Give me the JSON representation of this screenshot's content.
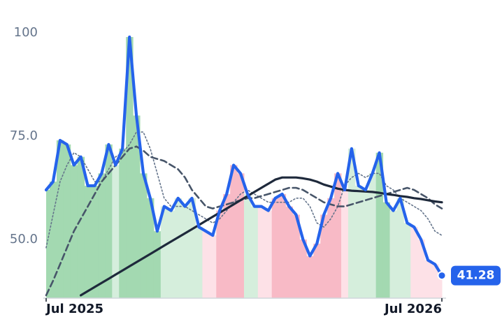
{
  "chart_data": {
    "type": "line",
    "x": [
      0,
      1,
      2,
      3,
      4,
      5,
      6,
      7,
      8,
      9,
      10,
      11,
      12,
      13,
      14,
      15,
      16,
      17,
      18,
      19,
      20,
      21,
      22,
      23,
      24,
      25,
      26,
      27,
      28,
      29,
      30,
      31,
      32,
      33,
      34,
      35,
      36,
      37,
      38,
      39,
      40,
      41,
      42,
      43,
      44,
      45,
      46,
      47,
      48,
      49,
      50,
      51,
      52,
      53,
      54,
      55,
      56,
      57
    ],
    "xlim": [
      0,
      57
    ],
    "xticks": [
      {
        "value": 0,
        "label": "Jul 2025"
      },
      {
        "value": 57,
        "label": "Jul 2026"
      }
    ],
    "ylim": [
      35.8,
      101.2
    ],
    "yticks": [
      {
        "value": 50,
        "label": "50.0"
      },
      {
        "value": 75,
        "label": "75.0"
      },
      100
    ],
    "grid": false,
    "series": [
      {
        "color": "#2563eb",
        "style": "solid-thick",
        "values": [
          62,
          64,
          74,
          73,
          68,
          70,
          63,
          63,
          66,
          73,
          68,
          72,
          99,
          80,
          66,
          60,
          52,
          58,
          57,
          60,
          58,
          60,
          53,
          52,
          51,
          57,
          61,
          68,
          66,
          61,
          58,
          58,
          57,
          60,
          61,
          58,
          56,
          50,
          46,
          49,
          56,
          60,
          66,
          62,
          72,
          63,
          62,
          66,
          71,
          59,
          57,
          60,
          54,
          53,
          50,
          45,
          44,
          41.28
        ],
        "fill_colors": [
          "#a3d9b1",
          "#a3d9b1",
          "#a3d9b1",
          "#a3d9b1",
          "#a3d9b1",
          "#a3d9b1",
          "#a3d9b1",
          "#a3d9b1",
          "#a3d9b1",
          "#a3d9b1",
          "#d5eedc",
          "#a3d9b1",
          "#a3d9b1",
          "#a3d9b1",
          "#a3d9b1",
          "#a3d9b1",
          "#a3d9b1",
          "#d5eedc",
          "#d5eedc",
          "#d5eedc",
          "#d5eedc",
          "#d5eedc",
          "#d5eedc",
          "#fde1e7",
          "#fde1e7",
          "#f8bac6",
          "#f8bac6",
          "#f8bac6",
          "#f8bac6",
          "#d5eedc",
          "#d5eedc",
          "#fde1e7",
          "#fde1e7",
          "#f8bac6",
          "#f8bac6",
          "#f8bac6",
          "#f8bac6",
          "#f8bac6",
          "#f8bac6",
          "#f8bac6",
          "#f8bac6",
          "#f8bac6",
          "#f8bac6",
          "#fde1e7",
          "#d5eedc",
          "#d5eedc",
          "#d5eedc",
          "#d5eedc",
          "#a3d9b1",
          "#a3d9b1",
          "#d5eedc",
          "#d5eedc",
          "#d5eedc",
          "#fde1e7",
          "#fde1e7",
          "#fde1e7",
          "#fde1e7",
          "#fde1e7"
        ]
      },
      {
        "color": "#64748b",
        "style": "dotted",
        "values": [
          48,
          56,
          64,
          68,
          71,
          70,
          67,
          64,
          64,
          67,
          70,
          71,
          73,
          76,
          76,
          72,
          66,
          60,
          58,
          58,
          58,
          57,
          56,
          55,
          54,
          55,
          57,
          59,
          61,
          62,
          61,
          60,
          59,
          59,
          59,
          59,
          60,
          60,
          58,
          54,
          53,
          55,
          58,
          63,
          65,
          66,
          65,
          66,
          66,
          63,
          62,
          60,
          59,
          58,
          57,
          55,
          52,
          51
        ]
      },
      {
        "color": "#475569",
        "style": "dashed",
        "values": [
          36.5,
          40,
          44,
          48,
          52,
          55,
          58,
          61,
          64,
          66,
          68,
          70,
          72,
          72.5,
          71.5,
          70,
          69.5,
          69,
          68,
          67,
          65,
          62,
          60,
          58,
          57.5,
          58,
          58.5,
          59,
          59.5,
          60,
          60,
          60.5,
          61,
          61.5,
          62,
          62.5,
          62.5,
          62,
          61,
          60,
          59,
          58.5,
          58,
          58,
          58.5,
          59,
          59.5,
          60,
          60.5,
          61,
          61.5,
          62,
          62.5,
          62,
          61,
          60,
          58.5,
          57.5
        ]
      },
      {
        "color": "#1e293b",
        "style": "solid",
        "values": [
          null,
          null,
          null,
          null,
          null,
          36.5,
          37.5,
          38.5,
          39.5,
          40.5,
          41.5,
          42.5,
          43.5,
          44.5,
          45.5,
          46.5,
          47.5,
          48.5,
          49.5,
          50.5,
          51.5,
          52.5,
          53.5,
          54.5,
          55.5,
          56.5,
          57.5,
          58.5,
          59.5,
          60.5,
          61.5,
          62.5,
          63.5,
          64.5,
          65,
          65,
          65,
          64.8,
          64.5,
          64,
          63.3,
          62.8,
          62.3,
          62,
          61.8,
          61.7,
          61.6,
          61.5,
          61.3,
          61,
          60.8,
          60.5,
          60.3,
          60,
          59.8,
          59.5,
          59.2,
          59
        ]
      }
    ]
  }
}
